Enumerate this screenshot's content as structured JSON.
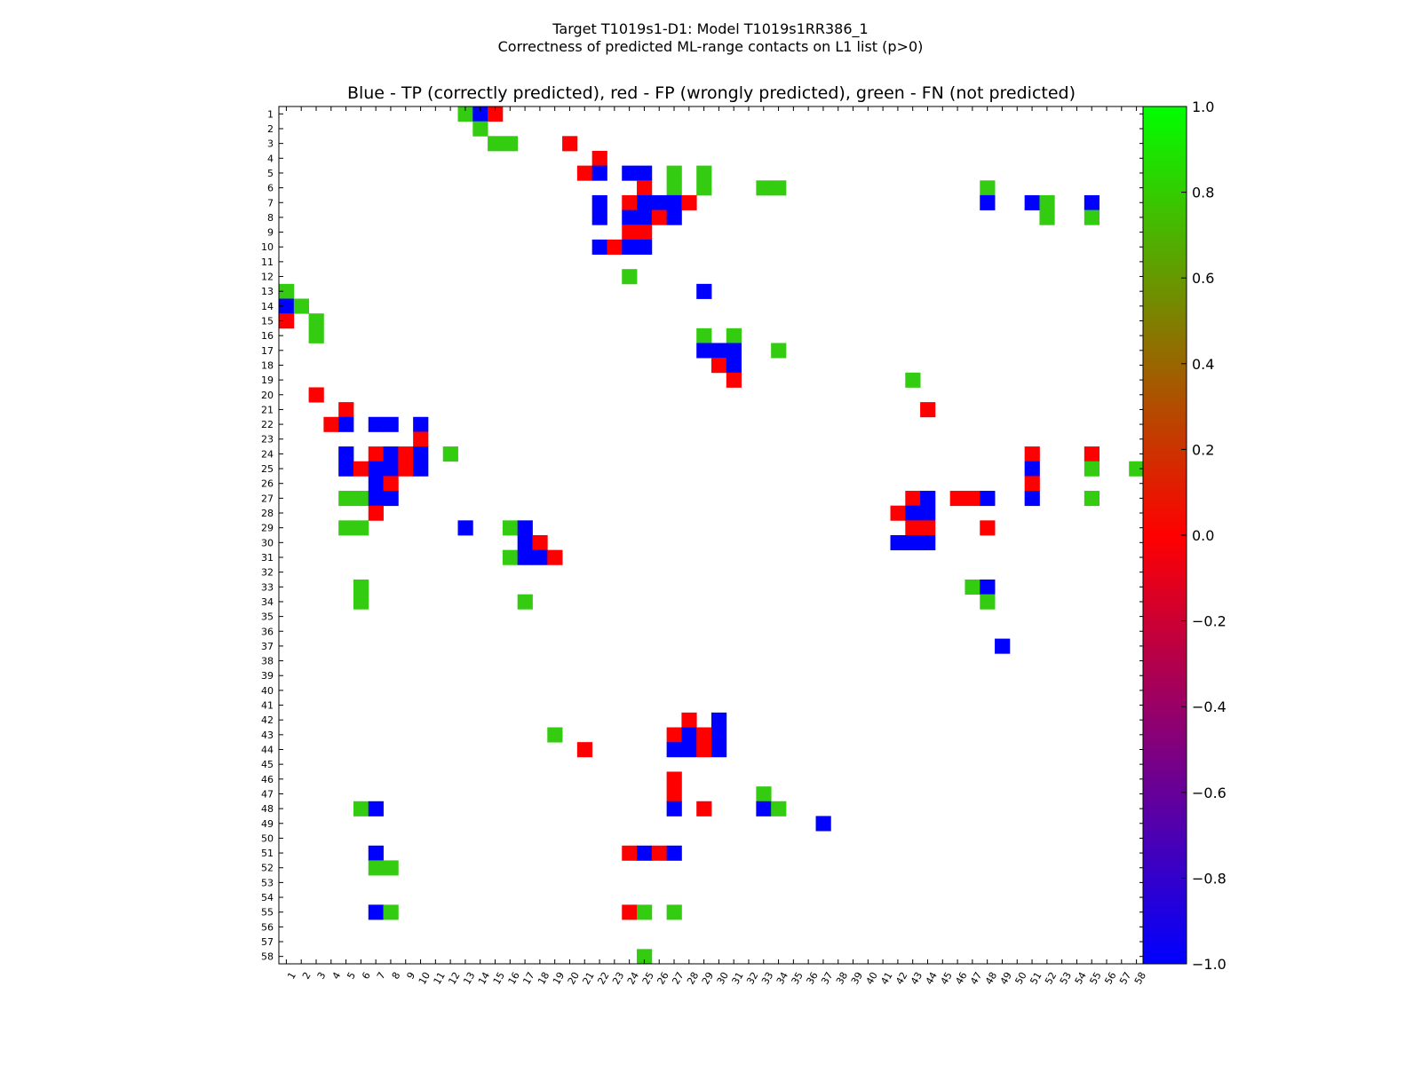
{
  "figure": {
    "suptitle_line1": "Target T1019s1-D1: Model T1019s1RR386_1",
    "suptitle_line2": "Correctness of predicted ML-range contacts on L1 list (p>0)"
  },
  "chart_data": {
    "type": "heatmap",
    "title": "Blue - TP (correctly predicted), red - FP (wrongly predicted), green - FN (not predicted)",
    "x_tick_labels": [
      "1",
      "2",
      "3",
      "4",
      "5",
      "6",
      "7",
      "8",
      "9",
      "10",
      "11",
      "12",
      "13",
      "14",
      "15",
      "16",
      "17",
      "18",
      "19",
      "20",
      "21",
      "22",
      "23",
      "24",
      "25",
      "26",
      "27",
      "28",
      "29",
      "30",
      "31",
      "32",
      "33",
      "34",
      "35",
      "36",
      "37",
      "38",
      "39",
      "40",
      "41",
      "42",
      "43",
      "44",
      "45",
      "46",
      "47",
      "48",
      "49",
      "50",
      "51",
      "52",
      "53",
      "54",
      "55",
      "56",
      "57",
      "58"
    ],
    "y_tick_labels": [
      "1",
      "2",
      "3",
      "4",
      "5",
      "6",
      "7",
      "8",
      "9",
      "10",
      "11",
      "12",
      "13",
      "14",
      "15",
      "16",
      "17",
      "18",
      "19",
      "20",
      "21",
      "22",
      "23",
      "24",
      "25",
      "26",
      "27",
      "28",
      "29",
      "30",
      "31",
      "32",
      "33",
      "34",
      "35",
      "36",
      "37",
      "38",
      "39",
      "40",
      "41",
      "42",
      "43",
      "44",
      "45",
      "46",
      "47",
      "48",
      "49",
      "50",
      "51",
      "52",
      "53",
      "54",
      "55",
      "56",
      "57",
      "58"
    ],
    "colorbar": {
      "min": -1.0,
      "max": 1.0,
      "tick_labels": [
        "1.0",
        "0.8",
        "0.6",
        "0.4",
        "0.2",
        "0.0",
        "−0.2",
        "−0.4",
        "−0.6",
        "−0.8",
        "−1.0"
      ]
    },
    "value_legend": {
      "TP": -1.0,
      "FP": 0.0,
      "FN": 0.8
    },
    "colors": {
      "TP": "#0000ff",
      "FP": "#ff0000",
      "FN": "#33cc11"
    },
    "cells_note": "each cell is [column, row, value] in residue-index units; value -1 = TP (blue), 0 = FP (red), 0.8 = FN (green)",
    "cells": [
      [
        13,
        1,
        0.8
      ],
      [
        14,
        1,
        -1
      ],
      [
        15,
        1,
        0
      ],
      [
        14,
        2,
        0.8
      ],
      [
        15,
        3,
        0.8
      ],
      [
        16,
        3,
        0.8
      ],
      [
        20,
        3,
        0
      ],
      [
        22,
        4,
        0
      ],
      [
        21,
        5,
        0
      ],
      [
        22,
        5,
        -1
      ],
      [
        24,
        5,
        -1
      ],
      [
        25,
        5,
        -1
      ],
      [
        27,
        5,
        0.8
      ],
      [
        29,
        5,
        0.8
      ],
      [
        25,
        6,
        0
      ],
      [
        27,
        6,
        0.8
      ],
      [
        29,
        6,
        0.8
      ],
      [
        33,
        6,
        0.8
      ],
      [
        34,
        6,
        0.8
      ],
      [
        48,
        6,
        0.8
      ],
      [
        22,
        7,
        -1
      ],
      [
        24,
        7,
        0
      ],
      [
        25,
        7,
        -1
      ],
      [
        26,
        7,
        -1
      ],
      [
        27,
        7,
        -1
      ],
      [
        28,
        7,
        0
      ],
      [
        48,
        7,
        -1
      ],
      [
        51,
        7,
        -1
      ],
      [
        52,
        7,
        0.8
      ],
      [
        55,
        7,
        -1
      ],
      [
        22,
        8,
        -1
      ],
      [
        24,
        8,
        -1
      ],
      [
        25,
        8,
        -1
      ],
      [
        26,
        8,
        0
      ],
      [
        27,
        8,
        -1
      ],
      [
        52,
        8,
        0.8
      ],
      [
        55,
        8,
        0.8
      ],
      [
        24,
        9,
        0
      ],
      [
        25,
        9,
        0
      ],
      [
        22,
        10,
        -1
      ],
      [
        23,
        10,
        0
      ],
      [
        24,
        10,
        -1
      ],
      [
        25,
        10,
        -1
      ],
      [
        24,
        12,
        0.8
      ],
      [
        29,
        13,
        -1
      ],
      [
        1,
        13,
        0.8
      ],
      [
        1,
        14,
        -1
      ],
      [
        2,
        14,
        0.8
      ],
      [
        1,
        15,
        0
      ],
      [
        3,
        15,
        0.8
      ],
      [
        3,
        16,
        0.8
      ],
      [
        29,
        16,
        0.8
      ],
      [
        31,
        16,
        0.8
      ],
      [
        29,
        17,
        -1
      ],
      [
        30,
        17,
        -1
      ],
      [
        31,
        17,
        -1
      ],
      [
        34,
        17,
        0.8
      ],
      [
        30,
        18,
        0
      ],
      [
        31,
        18,
        -1
      ],
      [
        31,
        19,
        0
      ],
      [
        43,
        19,
        0.8
      ],
      [
        3,
        20,
        0
      ],
      [
        5,
        21,
        0
      ],
      [
        44,
        21,
        0
      ],
      [
        4,
        22,
        0
      ],
      [
        5,
        22,
        -1
      ],
      [
        7,
        22,
        -1
      ],
      [
        8,
        22,
        -1
      ],
      [
        10,
        22,
        -1
      ],
      [
        10,
        23,
        0
      ],
      [
        5,
        24,
        -1
      ],
      [
        7,
        24,
        0
      ],
      [
        8,
        24,
        -1
      ],
      [
        9,
        24,
        0
      ],
      [
        10,
        24,
        -1
      ],
      [
        12,
        24,
        0.8
      ],
      [
        51,
        24,
        0
      ],
      [
        55,
        24,
        0
      ],
      [
        5,
        25,
        -1
      ],
      [
        6,
        25,
        0
      ],
      [
        7,
        25,
        -1
      ],
      [
        8,
        25,
        -1
      ],
      [
        9,
        25,
        0
      ],
      [
        10,
        25,
        -1
      ],
      [
        51,
        25,
        -1
      ],
      [
        55,
        25,
        0.8
      ],
      [
        58,
        25,
        0.8
      ],
      [
        7,
        26,
        -1
      ],
      [
        8,
        26,
        0
      ],
      [
        51,
        26,
        0
      ],
      [
        5,
        27,
        0.8
      ],
      [
        6,
        27,
        0.8
      ],
      [
        7,
        27,
        -1
      ],
      [
        8,
        27,
        -1
      ],
      [
        43,
        27,
        0
      ],
      [
        44,
        27,
        -1
      ],
      [
        46,
        27,
        0
      ],
      [
        47,
        27,
        0
      ],
      [
        48,
        27,
        -1
      ],
      [
        51,
        27,
        -1
      ],
      [
        55,
        27,
        0.8
      ],
      [
        7,
        28,
        0
      ],
      [
        42,
        28,
        0
      ],
      [
        43,
        28,
        -1
      ],
      [
        44,
        28,
        -1
      ],
      [
        5,
        29,
        0.8
      ],
      [
        6,
        29,
        0.8
      ],
      [
        13,
        29,
        -1
      ],
      [
        16,
        29,
        0.8
      ],
      [
        17,
        29,
        -1
      ],
      [
        43,
        29,
        0
      ],
      [
        44,
        29,
        0
      ],
      [
        48,
        29,
        0
      ],
      [
        17,
        30,
        -1
      ],
      [
        18,
        30,
        0
      ],
      [
        42,
        30,
        -1
      ],
      [
        43,
        30,
        -1
      ],
      [
        44,
        30,
        -1
      ],
      [
        16,
        31,
        0.8
      ],
      [
        17,
        31,
        -1
      ],
      [
        18,
        31,
        -1
      ],
      [
        19,
        31,
        0
      ],
      [
        6,
        33,
        0.8
      ],
      [
        47,
        33,
        0.8
      ],
      [
        48,
        33,
        -1
      ],
      [
        6,
        34,
        0.8
      ],
      [
        17,
        34,
        0.8
      ],
      [
        48,
        34,
        0.8
      ],
      [
        49,
        37,
        -1
      ],
      [
        28,
        42,
        0
      ],
      [
        30,
        42,
        -1
      ],
      [
        19,
        43,
        0.8
      ],
      [
        27,
        43,
        0
      ],
      [
        28,
        43,
        -1
      ],
      [
        29,
        43,
        0
      ],
      [
        30,
        43,
        -1
      ],
      [
        21,
        44,
        0
      ],
      [
        27,
        44,
        -1
      ],
      [
        28,
        44,
        -1
      ],
      [
        29,
        44,
        0
      ],
      [
        30,
        44,
        -1
      ],
      [
        27,
        46,
        0
      ],
      [
        27,
        47,
        0
      ],
      [
        33,
        47,
        0.8
      ],
      [
        6,
        48,
        0.8
      ],
      [
        7,
        48,
        -1
      ],
      [
        27,
        48,
        -1
      ],
      [
        29,
        48,
        0
      ],
      [
        33,
        48,
        -1
      ],
      [
        34,
        48,
        0.8
      ],
      [
        37,
        49,
        -1
      ],
      [
        7,
        51,
        -1
      ],
      [
        24,
        51,
        0
      ],
      [
        25,
        51,
        -1
      ],
      [
        26,
        51,
        0
      ],
      [
        27,
        51,
        -1
      ],
      [
        7,
        52,
        0.8
      ],
      [
        8,
        52,
        0.8
      ],
      [
        7,
        55,
        -1
      ],
      [
        8,
        55,
        0.8
      ],
      [
        24,
        55,
        0
      ],
      [
        25,
        55,
        0.8
      ],
      [
        27,
        55,
        0.8
      ],
      [
        25,
        58,
        0.8
      ]
    ]
  }
}
